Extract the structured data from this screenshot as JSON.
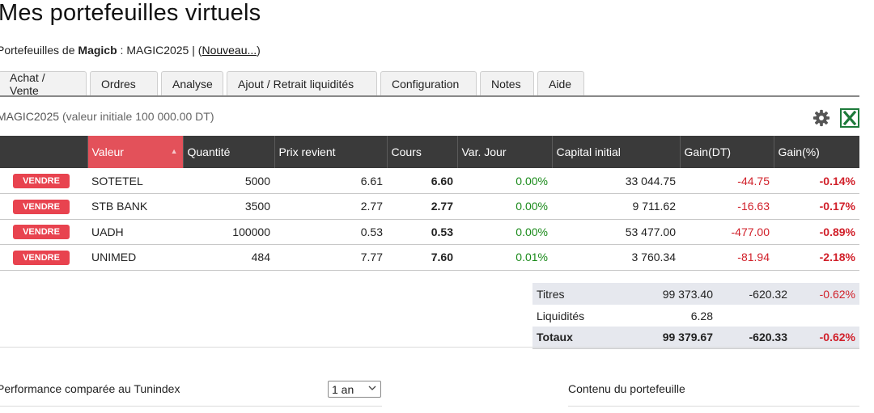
{
  "page": {
    "title": "Mes portefeuilles virtuels"
  },
  "owner": {
    "prefix": "Portefeuilles de",
    "user": "Magicb",
    "sep1": ":",
    "portfolio": "MAGIC2025",
    "sep2": "|",
    "open_paren": "(",
    "new_link": "Nouveau...",
    "close_paren": ")"
  },
  "tabs": [
    {
      "label": "Achat / Vente"
    },
    {
      "label": "Ordres"
    },
    {
      "label": "Analyse"
    },
    {
      "label": "Ajout / Retrait liquidités"
    },
    {
      "label": "Configuration"
    },
    {
      "label": "Notes"
    },
    {
      "label": "Aide"
    }
  ],
  "portfolio_header": {
    "name": "MAGIC2025",
    "detail": "(valeur initiale 100 000.00 DT)"
  },
  "icons": {
    "settings": "gear-icon",
    "export": "excel-icon"
  },
  "colors": {
    "header_bg": "#3a3a3a",
    "sort_active": "#e3515a",
    "sell_button": "#e8434f",
    "positive": "#1a8a1a",
    "negative": "#d1202a"
  },
  "table": {
    "columns": [
      "",
      "Valeur",
      "Quantité",
      "Prix revient",
      "Cours",
      "Var. Jour",
      "Capital initial",
      "Gain(DT)",
      "Gain(%)"
    ],
    "sell_label": "VENDRE",
    "rows": [
      {
        "valeur": "SOTETEL",
        "quantite": "5000",
        "prix_revient": "6.61",
        "cours": "6.60",
        "var_jour": "0.00%",
        "capital_initial": "33 044.75",
        "gain_dt": "-44.75",
        "gain_pct": "-0.14%"
      },
      {
        "valeur": "STB BANK",
        "quantite": "3500",
        "prix_revient": "2.77",
        "cours": "2.77",
        "var_jour": "0.00%",
        "capital_initial": "9 711.62",
        "gain_dt": "-16.63",
        "gain_pct": "-0.17%"
      },
      {
        "valeur": "UADH",
        "quantite": "100000",
        "prix_revient": "0.53",
        "cours": "0.53",
        "var_jour": "0.00%",
        "capital_initial": "53 477.00",
        "gain_dt": "-477.00",
        "gain_pct": "-0.89%"
      },
      {
        "valeur": "UNIMED",
        "quantite": "484",
        "prix_revient": "7.77",
        "cours": "7.60",
        "var_jour": "0.01%",
        "capital_initial": "3 760.34",
        "gain_dt": "-81.94",
        "gain_pct": "-2.18%"
      }
    ]
  },
  "summary": {
    "titres": {
      "label": "Titres",
      "value": "99 373.40",
      "gain": "-620.32",
      "pct": "-0.62%"
    },
    "liquidites": {
      "label": "Liquidités",
      "value": "6.28"
    },
    "totaux": {
      "label": "Totaux",
      "value": "99 379.67",
      "gain": "-620.33",
      "pct": "-0.62%"
    }
  },
  "performance": {
    "label": "Performance comparée au Tunindex",
    "period": "1 an"
  },
  "contents": {
    "label": "Contenu du portefeuille"
  }
}
